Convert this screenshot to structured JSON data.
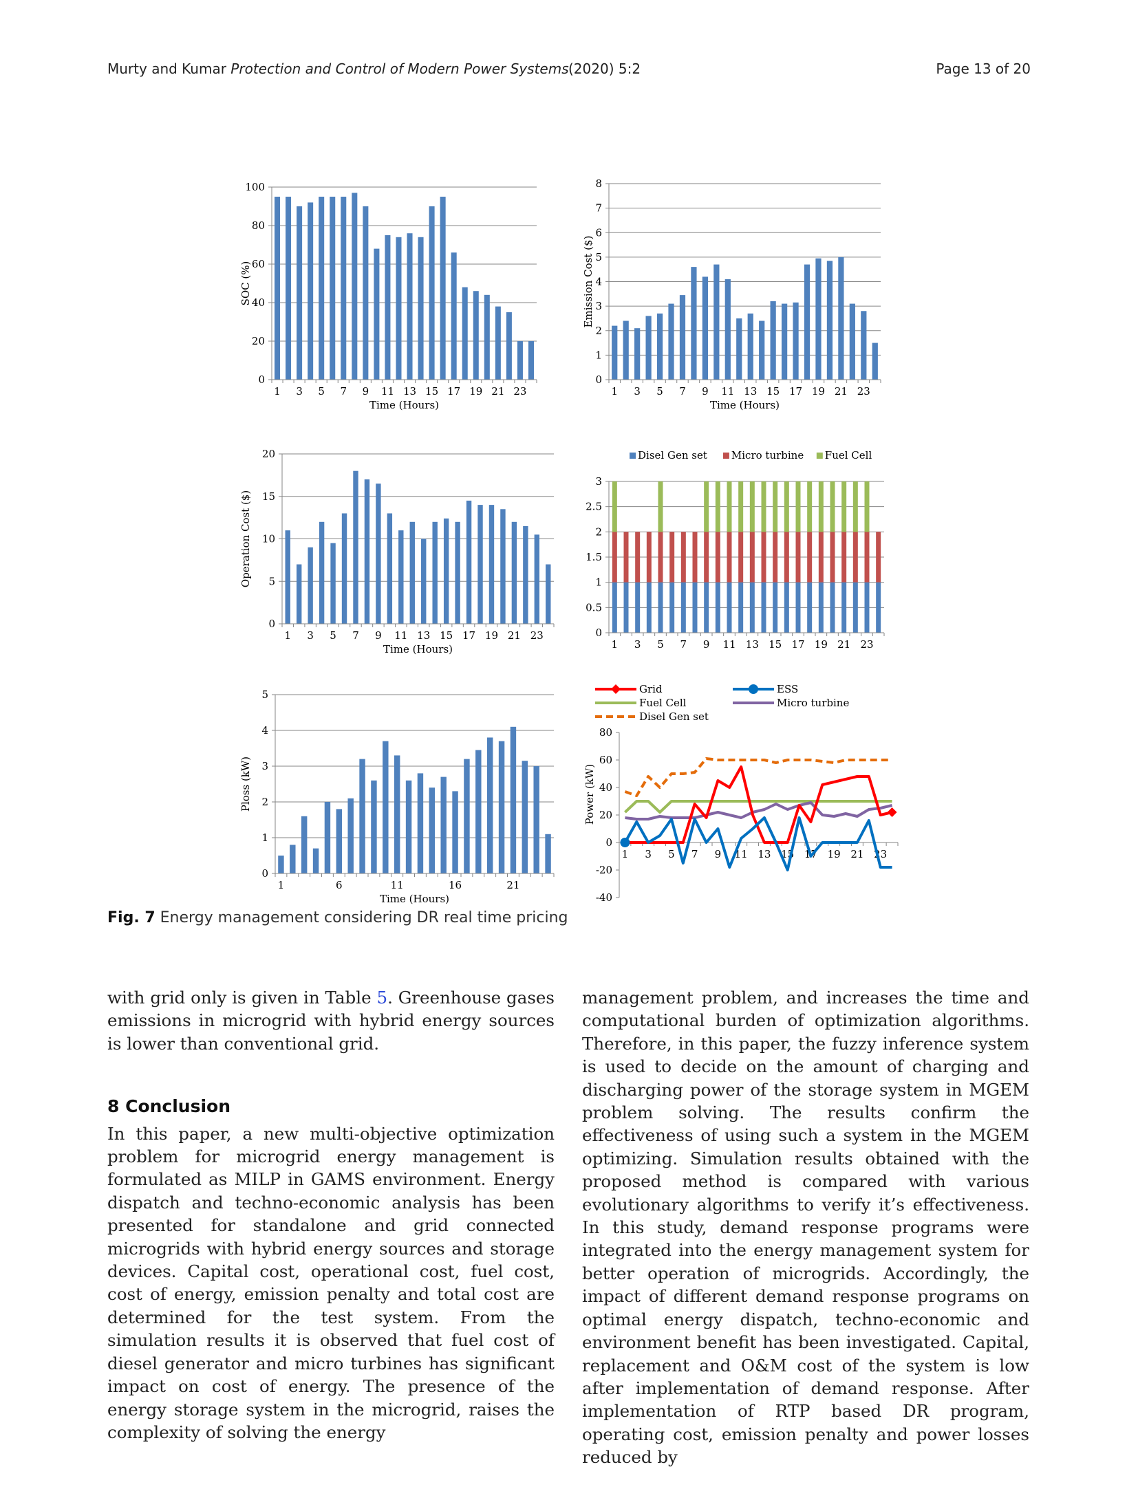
{
  "header": {
    "authors": "Murty and Kumar",
    "journal": "Protection and Control of Modern Power Systems",
    "issue": "(2020) 5:2",
    "page": "Page 13 of 20"
  },
  "figure": {
    "label": "Fig. 7",
    "caption": "Energy management considering DR real time pricing"
  },
  "body": {
    "left_intro_before_ref": "with grid only is given in Table",
    "left_intro_ref": "5",
    "left_intro_after_ref": ". Greenhouse gases emissions in microgrid with hybrid energy sources is lower than conventional grid.",
    "section_title": "8 Conclusion",
    "left_conclusion": "In this paper, a new multi-objective optimization problem for microgrid energy management is formulated as MILP in GAMS environment. Energy dispatch and techno-economic analysis has been presented for standalone and grid connected microgrids with hybrid energy sources and storage devices. Capital cost, operational cost, fuel cost, cost of energy, emission penalty and total cost are determined for the test system. From the simulation results it is observed that fuel cost of diesel generator and micro turbines has significant impact on cost of energy. The presence of the energy storage system in the microgrid, raises the complexity of solving the energy",
    "right_text": "management problem, and increases the time and computational burden of optimization algorithms. Therefore, in this paper, the fuzzy inference system is used to decide on the amount of charging and discharging power of the storage system in MGEM problem solving. The results confirm the effectiveness of using such a system in the MGEM optimizing. Simulation results obtained with the proposed method is compared with various evolutionary algorithms to verify it’s effectiveness. In this study, demand response programs were integrated into the energy management system for better operation of microgrids. Accordingly, the impact of different demand response programs on optimal energy dispatch, techno-economic and environment benefit has been investigated. Capital, replacement and O&M cost of the system is low after implementation of demand response. After implementation of RTP based DR program, operating cost, emission penalty and power losses reduced by"
  },
  "chart_data": [
    {
      "id": "soc",
      "type": "bar",
      "xlabel": "Time (Hours)",
      "ylabel": "SOC (%)",
      "ylim": [
        0,
        100
      ],
      "yticks": [
        0,
        20,
        40,
        60,
        80,
        100
      ],
      "grid": true,
      "xticklabels": [
        "1",
        "3",
        "5",
        "7",
        "9",
        "11",
        "13",
        "15",
        "17",
        "19",
        "21",
        "23"
      ],
      "categories": [
        1,
        2,
        3,
        4,
        5,
        6,
        7,
        8,
        9,
        10,
        11,
        12,
        13,
        14,
        15,
        16,
        17,
        18,
        19,
        20,
        21,
        22,
        23,
        24
      ],
      "values": [
        95,
        95,
        90,
        92,
        95,
        95,
        95,
        97,
        90,
        68,
        75,
        74,
        76,
        74,
        90,
        95,
        66,
        48,
        46,
        44,
        38,
        35,
        20,
        20
      ],
      "color": "#4f81bd"
    },
    {
      "id": "emission",
      "type": "bar",
      "xlabel": "Time (Hours)",
      "ylabel": "Emission Cost ($)",
      "ylim": [
        0,
        8
      ],
      "yticks": [
        0,
        1,
        2,
        3,
        4,
        5,
        6,
        7,
        8
      ],
      "grid": true,
      "xticklabels": [
        "1",
        "3",
        "5",
        "7",
        "9",
        "11",
        "13",
        "15",
        "17",
        "19",
        "21",
        "23"
      ],
      "categories": [
        1,
        2,
        3,
        4,
        5,
        6,
        7,
        8,
        9,
        10,
        11,
        12,
        13,
        14,
        15,
        16,
        17,
        18,
        19,
        20,
        21,
        22,
        23,
        24
      ],
      "values": [
        2.2,
        2.4,
        2.1,
        2.6,
        2.7,
        3.1,
        3.45,
        4.6,
        4.2,
        4.7,
        4.1,
        2.5,
        2.7,
        2.4,
        3.2,
        3.1,
        3.15,
        4.7,
        4.95,
        4.85,
        5.0,
        3.1,
        2.8,
        1.5
      ],
      "color": "#4f81bd"
    },
    {
      "id": "opcost",
      "type": "bar",
      "xlabel": "Time (Hours)",
      "ylabel": "Operation Cost ($)",
      "ylim": [
        0,
        20
      ],
      "yticks": [
        0,
        5,
        10,
        15,
        20
      ],
      "grid": true,
      "xticklabels": [
        "1",
        "3",
        "5",
        "7",
        "9",
        "11",
        "13",
        "15",
        "17",
        "19",
        "21",
        "23"
      ],
      "categories": [
        1,
        2,
        3,
        4,
        5,
        6,
        7,
        8,
        9,
        10,
        11,
        12,
        13,
        14,
        15,
        16,
        17,
        18,
        19,
        20,
        21,
        22,
        23,
        24
      ],
      "values": [
        11,
        7,
        9,
        12,
        9.5,
        13,
        18,
        17,
        16.5,
        13,
        11,
        12,
        10,
        12,
        12.4,
        12,
        14.5,
        14,
        14,
        13.5,
        12,
        11.5,
        10.5,
        7
      ],
      "color": "#4f81bd"
    },
    {
      "id": "units",
      "type": "bar",
      "stacked": true,
      "xlabel": "",
      "ylabel": "",
      "ylim": [
        0,
        3
      ],
      "yticks": [
        0,
        0.5,
        1,
        1.5,
        2,
        2.5,
        3
      ],
      "grid": true,
      "legend_position": "top",
      "xticklabels": [
        "1",
        "3",
        "5",
        "7",
        "9",
        "11",
        "13",
        "15",
        "17",
        "19",
        "21",
        "23"
      ],
      "categories": [
        1,
        2,
        3,
        4,
        5,
        6,
        7,
        8,
        9,
        10,
        11,
        12,
        13,
        14,
        15,
        16,
        17,
        18,
        19,
        20,
        21,
        22,
        23,
        24
      ],
      "series": [
        {
          "name": "Disel Gen set",
          "color": "#4f81bd",
          "values": [
            1,
            1,
            1,
            1,
            1,
            1,
            1,
            1,
            1,
            1,
            1,
            1,
            1,
            1,
            1,
            1,
            1,
            1,
            1,
            1,
            1,
            1,
            1,
            1
          ]
        },
        {
          "name": "Micro turbine",
          "color": "#c0504d",
          "values": [
            1,
            1,
            1,
            1,
            1,
            1,
            1,
            1,
            1,
            1,
            1,
            1,
            1,
            1,
            1,
            1,
            1,
            1,
            1,
            1,
            1,
            1,
            1,
            1
          ]
        },
        {
          "name": "Fuel Cell",
          "color": "#9bbb59",
          "values": [
            1,
            0,
            0,
            0,
            1,
            0,
            0,
            0,
            1,
            1,
            1,
            1,
            1,
            1,
            1,
            1,
            1,
            1,
            1,
            1,
            1,
            1,
            1,
            0
          ]
        }
      ]
    },
    {
      "id": "ploss",
      "type": "bar",
      "xlabel": "Time (Hours)",
      "ylabel": "Ploss (kW)",
      "ylim": [
        0,
        5
      ],
      "yticks": [
        0,
        1,
        2,
        3,
        4,
        5
      ],
      "grid": true,
      "xticklabels": [
        "1",
        "6",
        "11",
        "16",
        "21"
      ],
      "xtickindex": [
        1,
        6,
        11,
        16,
        21
      ],
      "categories": [
        1,
        2,
        3,
        4,
        5,
        6,
        7,
        8,
        9,
        10,
        11,
        12,
        13,
        14,
        15,
        16,
        17,
        18,
        19,
        20,
        21,
        22,
        23,
        24
      ],
      "values": [
        0.5,
        0.8,
        1.6,
        0.7,
        2.0,
        1.8,
        2.1,
        3.2,
        2.6,
        3.7,
        3.3,
        2.6,
        2.8,
        2.4,
        2.7,
        2.3,
        3.2,
        3.45,
        3.8,
        3.7,
        4.1,
        3.15,
        3.0,
        1.1
      ],
      "color": "#4f81bd"
    },
    {
      "id": "power",
      "type": "line",
      "xlabel": "",
      "ylabel": "Power (kW)",
      "ylim": [
        -40,
        80
      ],
      "yticks": [
        -40,
        -20,
        0,
        20,
        40,
        60,
        80
      ],
      "grid": false,
      "legend_position": "top",
      "xticklabels": [
        "1",
        "3",
        "5",
        "7",
        "9",
        "11",
        "13",
        "15",
        "17",
        "19",
        "21",
        "23"
      ],
      "x": [
        1,
        2,
        3,
        4,
        5,
        6,
        7,
        8,
        9,
        10,
        11,
        12,
        13,
        14,
        15,
        16,
        17,
        18,
        19,
        20,
        21,
        22,
        23,
        24
      ],
      "series": [
        {
          "name": "Grid",
          "color": "#ff0000",
          "style": "solid-diamond",
          "values": [
            0,
            0,
            0,
            0,
            0,
            0,
            28,
            18,
            45,
            40,
            55,
            20,
            0,
            0,
            0,
            27,
            15,
            42,
            44,
            46,
            48,
            48,
            20,
            22
          ]
        },
        {
          "name": "ESS",
          "color": "#0070c0",
          "style": "solid-circle",
          "values": [
            0,
            15,
            0,
            5,
            17,
            -15,
            17,
            0,
            10,
            -18,
            3,
            10,
            18,
            0,
            -20,
            18,
            -10,
            0,
            0,
            0,
            0,
            16,
            -18,
            -18
          ]
        },
        {
          "name": "Fuel Cell",
          "color": "#9bbb59",
          "style": "solid",
          "values": [
            22,
            30,
            30,
            22,
            30,
            30,
            30,
            30,
            30,
            30,
            30,
            30,
            30,
            30,
            30,
            30,
            30,
            30,
            30,
            30,
            30,
            30,
            30,
            30
          ]
        },
        {
          "name": "Micro turbine",
          "color": "#8064a2",
          "style": "solid",
          "values": [
            18,
            17,
            17,
            19,
            18,
            18,
            18,
            20,
            22,
            20,
            18,
            22,
            24,
            28,
            24,
            27,
            29,
            20,
            19,
            21,
            19,
            24,
            25,
            27
          ]
        },
        {
          "name": "Disel Gen set",
          "color": "#e46c0a",
          "style": "dashed",
          "values": [
            37,
            34,
            48,
            40,
            50,
            50,
            51,
            61,
            60,
            60,
            60,
            60,
            60,
            58,
            60,
            60,
            60,
            59,
            58,
            60,
            60,
            60,
            60,
            60
          ]
        }
      ]
    }
  ]
}
